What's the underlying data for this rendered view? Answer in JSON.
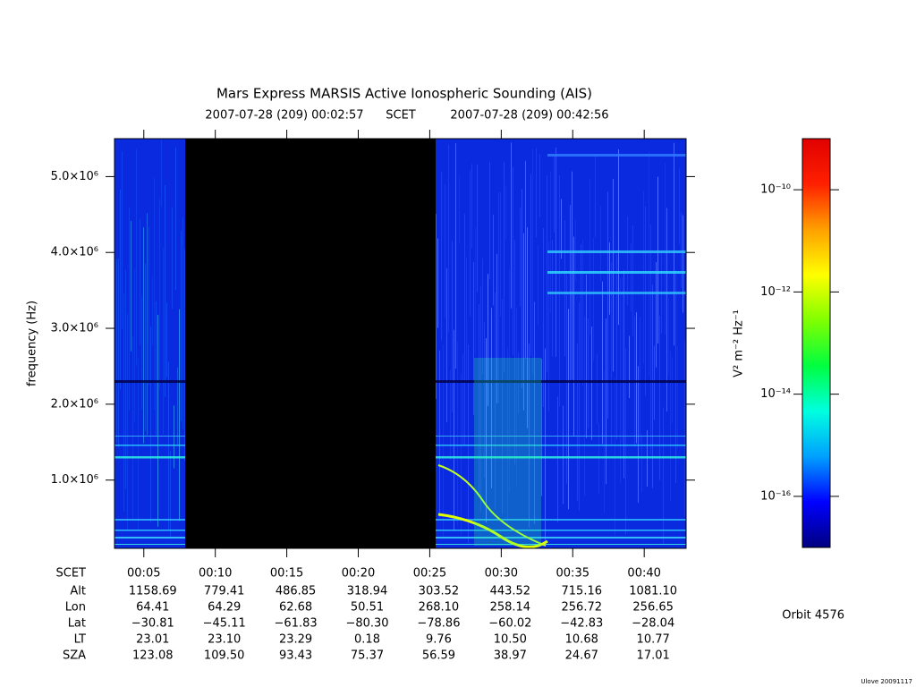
{
  "chart_data": {
    "type": "spectrogram",
    "title": "Mars Express MARSIS Active Ionospheric Sounding (AIS)",
    "start_time": "2007-07-28 (209) 00:02:57",
    "time_system": "SCET",
    "end_time": "2007-07-28 (209) 00:42:56",
    "y_label": "frequency (Hz)",
    "xlim": [
      2.95,
      42.93
    ],
    "xticks": [
      {
        "value": 5,
        "label": "00:05"
      },
      {
        "value": 10,
        "label": "00:10"
      },
      {
        "value": 15,
        "label": "00:15"
      },
      {
        "value": 20,
        "label": "00:20"
      },
      {
        "value": 25,
        "label": "00:25"
      },
      {
        "value": 30,
        "label": "00:30"
      },
      {
        "value": 35,
        "label": "00:35"
      },
      {
        "value": 40,
        "label": "00:40"
      }
    ],
    "ylim": [
      100000,
      5500000
    ],
    "yticks": [
      {
        "value": 1000000,
        "label": "1.0×10⁶"
      },
      {
        "value": 2000000,
        "label": "2.0×10⁶"
      },
      {
        "value": 3000000,
        "label": "3.0×10⁶"
      },
      {
        "value": 4000000,
        "label": "4.0×10⁶"
      },
      {
        "value": 5000000,
        "label": "5.0×10⁶"
      }
    ],
    "colorbar": {
      "label": "V² m⁻² Hz⁻¹",
      "log": true,
      "lim": [
        1e-17,
        1e-09
      ],
      "ticks": [
        {
          "value": 1e-16,
          "label": "10⁻¹⁶"
        },
        {
          "value": 1e-14,
          "label": "10⁻¹⁴"
        },
        {
          "value": 1e-12,
          "label": "10⁻¹²"
        },
        {
          "value": 1e-10,
          "label": "10⁻¹⁰"
        }
      ],
      "colors": [
        "#000080",
        "#0000ff",
        "#00a0ff",
        "#00ffe0",
        "#00ff40",
        "#80ff00",
        "#ffff00",
        "#ffa000",
        "#ff2000",
        "#e00000"
      ]
    },
    "ephemeris": {
      "labels": [
        "SCET",
        "Alt",
        "Lon",
        "Lat",
        "LT",
        "SZA"
      ],
      "rows": [
        [
          "1158.69",
          "779.41",
          "486.85",
          "318.94",
          "303.52",
          "443.52",
          "715.16",
          "1081.10"
        ],
        [
          "64.41",
          "64.29",
          "62.68",
          "50.51",
          "268.10",
          "258.14",
          "256.72",
          "256.65"
        ],
        [
          "−30.81",
          "−45.11",
          "−61.83",
          "−80.30",
          "−78.86",
          "−60.02",
          "−42.83",
          "−28.04"
        ],
        [
          "23.01",
          "23.10",
          "23.29",
          "0.18",
          "9.76",
          "10.50",
          "10.68",
          "10.77"
        ],
        [
          "123.08",
          "109.50",
          "93.43",
          "75.37",
          "56.59",
          "38.97",
          "24.67",
          "17.01"
        ]
      ]
    },
    "orbit": "Orbit 4576",
    "credit": "Ulove 20091117"
  }
}
